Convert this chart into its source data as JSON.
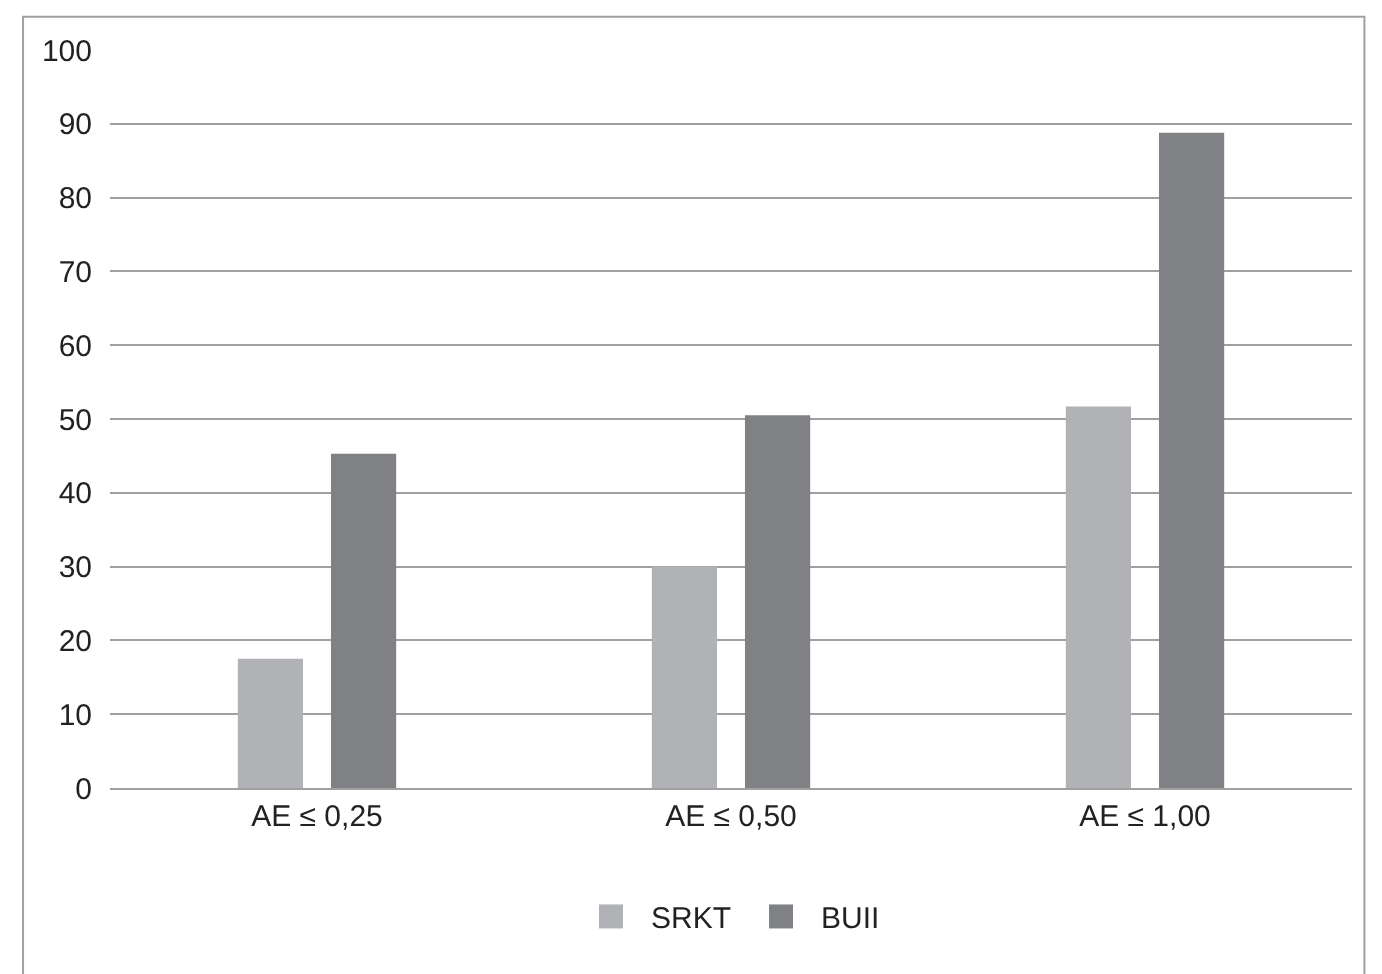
{
  "chart_data": {
    "type": "bar",
    "categories": [
      "AE ≤ 0,25",
      "AE ≤ 0,50",
      "AE ≤ 1,00"
    ],
    "series": [
      {
        "name": "SRKT",
        "color": "#b1b2b5",
        "values": [
          17.5,
          30,
          51.7
        ]
      },
      {
        "name": "BUII",
        "color": "#808184",
        "values": [
          45.3,
          50.5,
          88.8
        ]
      }
    ],
    "ylim": [
      0,
      100
    ],
    "yticks": [
      0,
      10,
      20,
      30,
      40,
      50,
      60,
      70,
      80,
      90,
      100
    ],
    "grid": "y",
    "legend": "bottom"
  }
}
